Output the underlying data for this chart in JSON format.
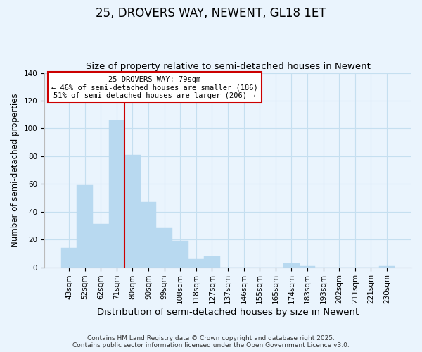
{
  "title": "25, DROVERS WAY, NEWENT, GL18 1ET",
  "subtitle": "Size of property relative to semi-detached houses in Newent",
  "xlabel": "Distribution of semi-detached houses by size in Newent",
  "ylabel": "Number of semi-detached properties",
  "categories": [
    "43sqm",
    "52sqm",
    "62sqm",
    "71sqm",
    "80sqm",
    "90sqm",
    "99sqm",
    "108sqm",
    "118sqm",
    "127sqm",
    "137sqm",
    "146sqm",
    "155sqm",
    "165sqm",
    "174sqm",
    "183sqm",
    "193sqm",
    "202sqm",
    "211sqm",
    "221sqm",
    "230sqm"
  ],
  "values": [
    14,
    59,
    31,
    106,
    81,
    47,
    28,
    19,
    6,
    8,
    0,
    0,
    0,
    0,
    3,
    1,
    0,
    0,
    0,
    0,
    1
  ],
  "bar_color": "#b8d9f0",
  "bar_edge_color": "#b8d9f0",
  "bar_width": 1.0,
  "vline_index": 4,
  "vline_color": "#cc0000",
  "ylim": [
    0,
    140
  ],
  "yticks": [
    0,
    20,
    40,
    60,
    80,
    100,
    120,
    140
  ],
  "grid_color": "#c5dff0",
  "background_color": "#eaf4fd",
  "annotation_title": "25 DROVERS WAY: 79sqm",
  "annotation_line1": "← 46% of semi-detached houses are smaller (186)",
  "annotation_line2": "51% of semi-detached houses are larger (206) →",
  "annotation_box_color": "#ffffff",
  "annotation_box_edge": "#cc0000",
  "footer1": "Contains HM Land Registry data © Crown copyright and database right 2025.",
  "footer2": "Contains public sector information licensed under the Open Government Licence v3.0.",
  "title_fontsize": 12,
  "subtitle_fontsize": 9.5,
  "xlabel_fontsize": 9.5,
  "ylabel_fontsize": 8.5,
  "tick_fontsize": 7.5,
  "annotation_fontsize": 7.5,
  "footer_fontsize": 6.5
}
